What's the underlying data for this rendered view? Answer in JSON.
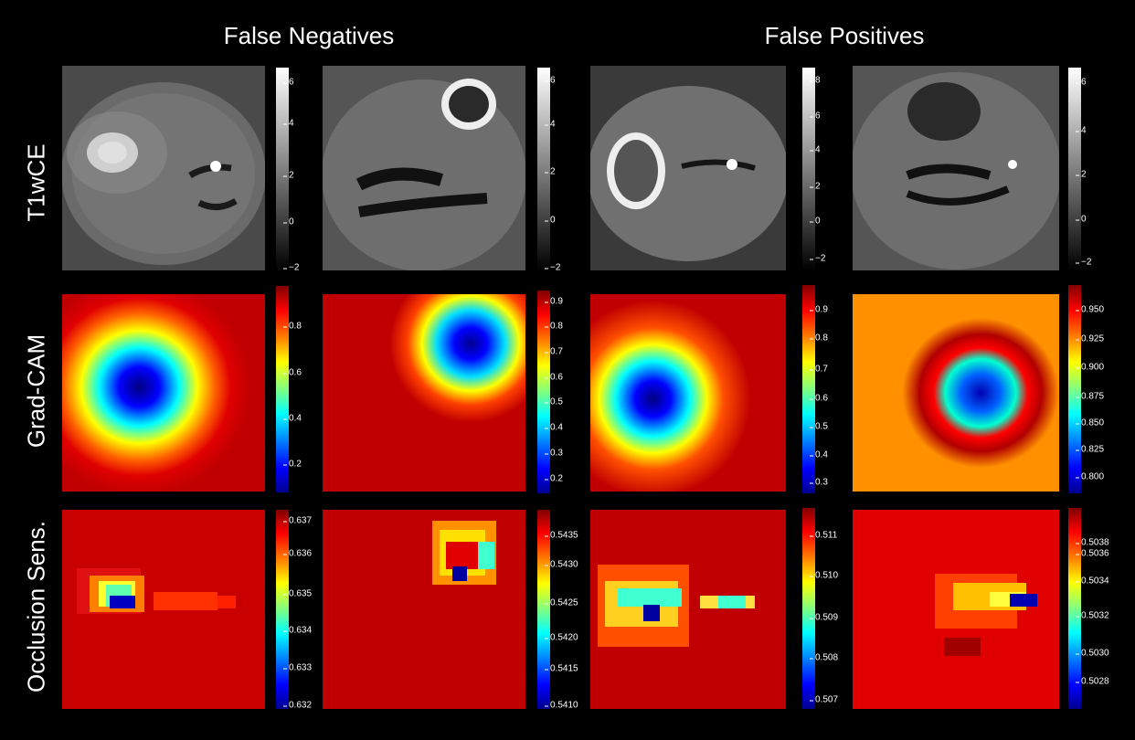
{
  "column_headers": [
    "False Negatives",
    "False Positives"
  ],
  "row_labels": [
    "T1wCE",
    "Grad-CAM",
    "Occlusion Sens."
  ],
  "colorbars": {
    "t1wce": [
      [
        "6",
        "4",
        "2",
        "0",
        "−2"
      ],
      [
        "6",
        "4",
        "2",
        "0",
        "−2"
      ],
      [
        "8",
        "6",
        "4",
        "2",
        "0",
        "−2"
      ],
      [
        "6",
        "4",
        "2",
        "0",
        "−2"
      ]
    ],
    "gradcam": [
      [
        "0.8",
        "0.6",
        "0.4",
        "0.2"
      ],
      [
        "0.9",
        "0.8",
        "0.7",
        "0.6",
        "0.5",
        "0.4",
        "0.3",
        "0.2"
      ],
      [
        "0.9",
        "0.8",
        "0.7",
        "0.6",
        "0.5",
        "0.4",
        "0.3"
      ],
      [
        "0.950",
        "0.925",
        "0.900",
        "0.875",
        "0.850",
        "0.825",
        "0.800"
      ]
    ],
    "occlusion": [
      [
        "0.637",
        "0.636",
        "0.635",
        "0.634",
        "0.633",
        "0.632"
      ],
      [
        "0.5435",
        "0.5430",
        "0.5425",
        "0.5420",
        "0.5415",
        "0.5410"
      ],
      [
        "0.511",
        "0.510",
        "0.509",
        "0.508",
        "0.507"
      ],
      [
        "0.5038",
        "0.5036",
        "0.5034",
        "0.5032",
        "0.5030",
        "0.5028"
      ]
    ]
  }
}
